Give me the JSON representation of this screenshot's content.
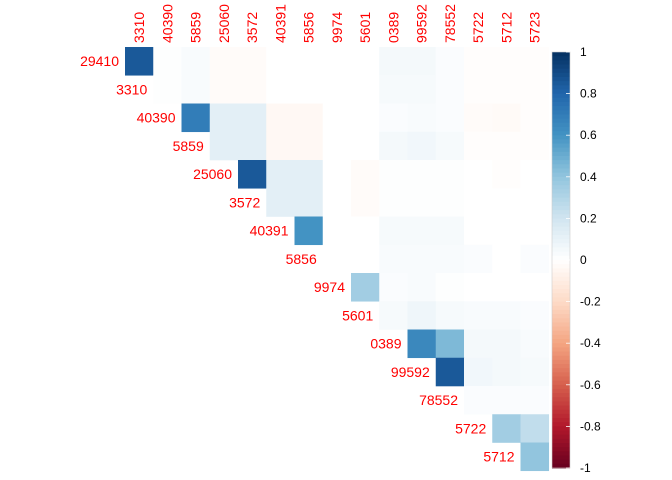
{
  "chart_data": {
    "type": "heatmap",
    "shape": "upper-triangular correlation matrix",
    "labels_color": "#ff0000",
    "col_labels": [
      "3310",
      "40390",
      "5859",
      "25060",
      "3572",
      "40391",
      "5856",
      "9974",
      "5601",
      "0389",
      "99592",
      "78552",
      "5722",
      "5712",
      "5723"
    ],
    "row_labels": [
      "29410",
      "3310",
      "40390",
      "5859",
      "25060",
      "3572",
      "40391",
      "5856",
      "9974",
      "5601",
      "0389",
      "99592",
      "78552",
      "5722",
      "5712"
    ],
    "values": [
      [
        0.85,
        0.01,
        0.03,
        -0.02,
        -0.02,
        0.0,
        0.0,
        0.0,
        0.0,
        0.05,
        0.05,
        0.02,
        -0.01,
        -0.01,
        -0.01
      ],
      [
        null,
        0.01,
        0.03,
        -0.02,
        -0.02,
        0.0,
        0.0,
        0.0,
        0.0,
        0.04,
        0.04,
        0.02,
        -0.01,
        -0.01,
        -0.01
      ],
      [
        null,
        null,
        0.7,
        0.12,
        0.12,
        -0.04,
        -0.04,
        0.0,
        0.0,
        0.02,
        0.03,
        0.02,
        -0.02,
        -0.03,
        -0.01
      ],
      [
        null,
        null,
        null,
        0.12,
        0.12,
        -0.04,
        -0.04,
        0.0,
        0.0,
        0.05,
        0.06,
        0.04,
        -0.01,
        -0.01,
        -0.01
      ],
      [
        null,
        null,
        null,
        null,
        0.85,
        0.12,
        0.12,
        0.0,
        -0.02,
        0.01,
        0.01,
        0.01,
        0.0,
        -0.01,
        0.0
      ],
      [
        null,
        null,
        null,
        null,
        null,
        0.12,
        0.12,
        0.0,
        -0.02,
        0.01,
        0.01,
        0.01,
        0.0,
        0.0,
        0.0
      ],
      [
        null,
        null,
        null,
        null,
        null,
        null,
        0.6,
        0.0,
        0.0,
        0.04,
        0.04,
        0.04,
        0.0,
        0.0,
        0.0
      ],
      [
        null,
        null,
        null,
        null,
        null,
        null,
        null,
        0.0,
        0.0,
        0.03,
        0.03,
        0.03,
        0.02,
        0.0,
        0.02
      ],
      [
        null,
        null,
        null,
        null,
        null,
        null,
        null,
        null,
        0.35,
        0.02,
        0.03,
        0.01,
        0.0,
        0.0,
        0.0
      ],
      [
        null,
        null,
        null,
        null,
        null,
        null,
        null,
        null,
        null,
        0.04,
        0.07,
        0.04,
        0.03,
        0.03,
        0.02
      ],
      [
        null,
        null,
        null,
        null,
        null,
        null,
        null,
        null,
        null,
        null,
        0.65,
        0.45,
        0.05,
        0.05,
        0.03
      ],
      [
        null,
        null,
        null,
        null,
        null,
        null,
        null,
        null,
        null,
        null,
        null,
        0.85,
        0.06,
        0.05,
        0.04
      ],
      [
        null,
        null,
        null,
        null,
        null,
        null,
        null,
        null,
        null,
        null,
        null,
        null,
        0.02,
        0.02,
        0.02
      ],
      [
        null,
        null,
        null,
        null,
        null,
        null,
        null,
        null,
        null,
        null,
        null,
        null,
        null,
        0.35,
        0.25
      ],
      [
        null,
        null,
        null,
        null,
        null,
        null,
        null,
        null,
        null,
        null,
        null,
        null,
        null,
        null,
        0.4
      ]
    ],
    "colorbar": {
      "min": -1,
      "max": 1,
      "ticks": [
        1,
        0.8,
        0.6,
        0.4,
        0.2,
        0,
        -0.2,
        -0.4,
        -0.6,
        -0.8,
        -1
      ],
      "tick_labels": [
        "1",
        "0.8",
        "0.6",
        "0.4",
        "0.2",
        "0",
        "-0.2",
        "-0.4",
        "-0.6",
        "-0.8",
        "-1"
      ],
      "colors": [
        "#67001f",
        "#b2182b",
        "#d6604d",
        "#f4a582",
        "#fddbc7",
        "#ffffff",
        "#d1e5f0",
        "#92c5de",
        "#4393c3",
        "#2166ac",
        "#053061"
      ]
    }
  }
}
